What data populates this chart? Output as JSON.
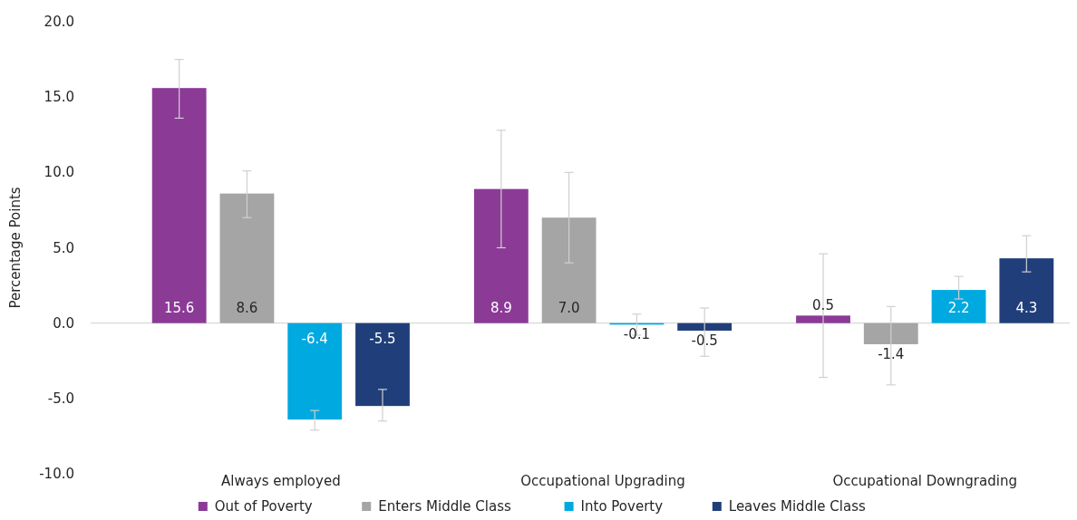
{
  "chart_data": {
    "type": "bar",
    "ylabel": "Percentage Points",
    "categories": [
      "Always employed",
      "Occupational Upgrading",
      "Occupational Downgrading"
    ],
    "series": [
      {
        "name": "Out of Poverty",
        "color": "#8b3a96",
        "values": [
          15.6,
          8.9,
          0.5
        ],
        "value_labels": [
          "15.6",
          "8.9",
          "0.5"
        ],
        "errors": [
          [
            13.6,
            17.5
          ],
          [
            5.0,
            12.8
          ],
          [
            -3.6,
            4.6
          ]
        ]
      },
      {
        "name": "Enters Middle Class",
        "color": "#a5a5a5",
        "values": [
          8.6,
          7.0,
          -1.4
        ],
        "value_labels": [
          "8.6",
          "7.0",
          "-1.4"
        ],
        "errors": [
          [
            7.0,
            10.1
          ],
          [
            4.0,
            10.0
          ],
          [
            -4.1,
            1.1
          ]
        ]
      },
      {
        "name": "Into Poverty",
        "color": "#00a9e0",
        "values": [
          -6.4,
          -0.1,
          2.2
        ],
        "value_labels": [
          "-6.4",
          "-0.1",
          "2.2"
        ],
        "errors": [
          [
            -7.1,
            -5.8
          ],
          [
            -0.8,
            0.6
          ],
          [
            1.6,
            3.1
          ]
        ]
      },
      {
        "name": "Leaves Middle Class",
        "color": "#203f7a",
        "values": [
          -5.5,
          -0.5,
          4.3
        ],
        "value_labels": [
          "-5.5",
          "-0.5",
          "4.3"
        ],
        "errors": [
          [
            -6.5,
            -4.4
          ],
          [
            -2.2,
            1.0
          ],
          [
            3.4,
            5.8
          ]
        ]
      }
    ],
    "ylim": [
      -10,
      20
    ],
    "yticks": [
      {
        "value": -10,
        "label": "-10.0"
      },
      {
        "value": -5,
        "label": "-5.0"
      },
      {
        "value": 0,
        "label": "0.0"
      },
      {
        "value": 5,
        "label": "5.0"
      },
      {
        "value": 10,
        "label": "10.0"
      },
      {
        "value": 15,
        "label": "15.0"
      },
      {
        "value": 20,
        "label": "20.0"
      }
    ],
    "legend": "bottom"
  }
}
